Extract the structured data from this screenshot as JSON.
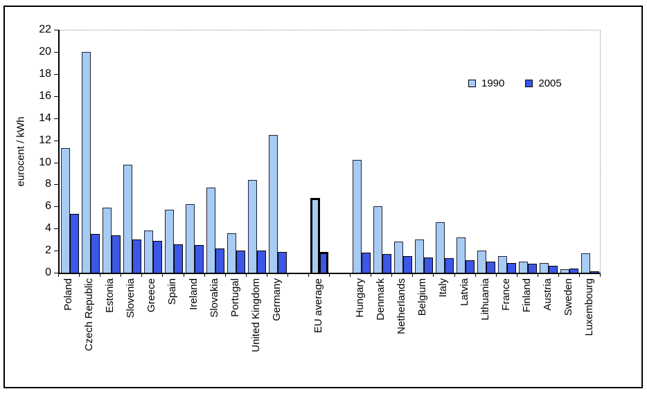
{
  "figure": {
    "ylabel": "eurocent / kWh",
    "background": "#ffffff",
    "frame_color": "#000000"
  },
  "chart_data": {
    "type": "bar",
    "title": "",
    "xlabel": "",
    "ylabel": "eurocent / kWh",
    "ylim": [
      0,
      22
    ],
    "yticks": [
      0,
      2,
      4,
      6,
      8,
      10,
      12,
      14,
      16,
      18,
      20,
      22
    ],
    "grid": "off (plot frame top and right drawn as dotted gray lines)",
    "legend_position": "upper right inside plot",
    "categories": [
      "Poland",
      "Czech Republic",
      "Estonia",
      "Slovenia",
      "Greece",
      "Spain",
      "Ireland",
      "Slovakia",
      "Portugal",
      "United Kingdom",
      "Germany",
      "EU average",
      "Hungary",
      "Denmark",
      "Netherlands",
      "Belgium",
      "Italy",
      "Latvia",
      "Lithuania",
      "France",
      "Finland",
      "Austria",
      "Sweden",
      "Luxembourg"
    ],
    "series": [
      {
        "name": "1990",
        "color": "#a7cbf2",
        "border_color": "#1f1f3a",
        "values": [
          11.3,
          20.0,
          5.9,
          9.8,
          3.8,
          5.7,
          6.2,
          7.7,
          3.6,
          8.4,
          12.5,
          6.8,
          10.2,
          6.0,
          2.8,
          3.0,
          4.6,
          3.2,
          2.0,
          1.5,
          1.0,
          0.85,
          0.3,
          1.75
        ]
      },
      {
        "name": "2005",
        "color": "#3c57e6",
        "border_color": "#000000",
        "values": [
          5.3,
          3.5,
          3.4,
          3.0,
          2.9,
          2.6,
          2.5,
          2.2,
          2.0,
          2.0,
          1.9,
          1.9,
          1.8,
          1.7,
          1.5,
          1.4,
          1.3,
          1.1,
          1.0,
          0.9,
          0.8,
          0.6,
          0.35,
          0.15
        ]
      }
    ],
    "highlight": {
      "category": "EU average",
      "style": "thick black outline on both bars, separated by an empty slot on each side",
      "border_color": "#000000"
    }
  }
}
